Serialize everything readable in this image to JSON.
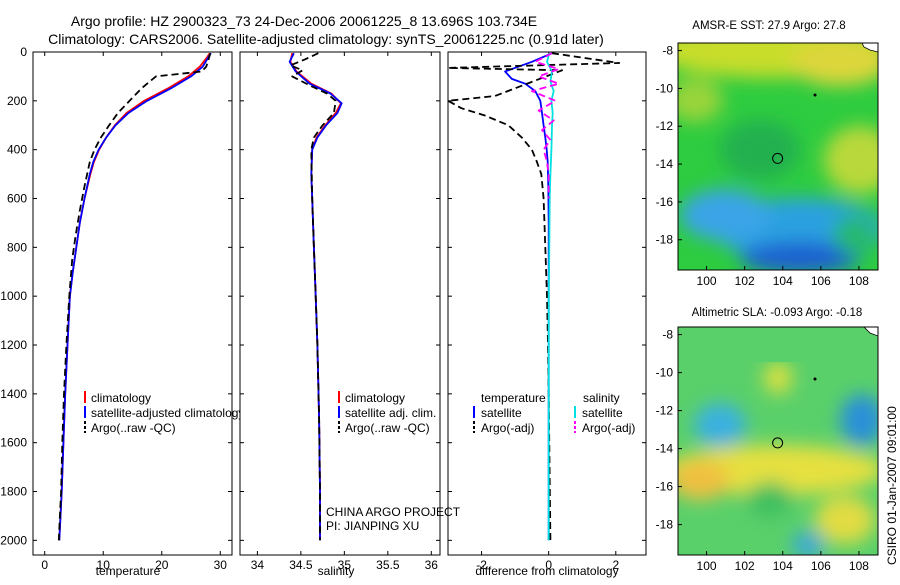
{
  "figure": {
    "title_line1": "Argo profile: HZ 2900323_73 24-Dec-2006 20061225_8 13.696S 103.734E",
    "title_line2": "Climatology: CARS2006. Satellite-adjusted climatology: synTS_20061225.nc (0.91d later)",
    "side_note": "CSIRO 01-Jan-2007 09:01:00",
    "project_line1": "CHINA ARGO PROJECT",
    "project_line2": "PI: JIANPING XU",
    "colors": {
      "climatology": "#ff0000",
      "satellite": "#0000ff",
      "argo": "#000000",
      "sat_salinity": "#00e0e0",
      "argo_salinity": "#ff00ff"
    }
  },
  "chart_data": [
    {
      "id": "temperature",
      "type": "line",
      "xlabel": "temperature",
      "ylabel": "",
      "xlim": [
        -2,
        32
      ],
      "ylim": [
        2060,
        0
      ],
      "xticks": [
        0,
        10,
        20,
        30
      ],
      "yticks": [
        0,
        200,
        400,
        600,
        800,
        1000,
        1200,
        1400,
        1600,
        1800,
        2000
      ],
      "legend": [
        "climatology",
        "satellite-adjusted climatology",
        "Argo(..raw -QC)"
      ],
      "series": [
        {
          "name": "climatology",
          "color": "#ff0000",
          "dash": "",
          "x": [
            28.2,
            27.8,
            26.5,
            24.5,
            21,
            17,
            14,
            12,
            10.5,
            9.3,
            8.4,
            7.8,
            6.8,
            6.0,
            5.4,
            4.8,
            4.3,
            3.9,
            3.5,
            3.2,
            2.9,
            2.7,
            2.5
          ],
          "y": [
            5,
            20,
            60,
            100,
            150,
            200,
            250,
            300,
            350,
            400,
            450,
            500,
            600,
            700,
            800,
            900,
            1000,
            1200,
            1400,
            1600,
            1800,
            1900,
            2000
          ]
        },
        {
          "name": "satellite-adjusted climatology",
          "color": "#0000ff",
          "dash": "",
          "x": [
            28.4,
            28.0,
            27.0,
            25.0,
            21.5,
            17.5,
            14.3,
            12.1,
            10.5,
            9.2,
            8.3,
            7.7,
            6.8,
            6.0,
            5.4,
            4.8,
            4.3,
            3.9,
            3.5,
            3.2,
            2.9,
            2.7,
            2.5
          ],
          "y": [
            5,
            20,
            60,
            100,
            150,
            200,
            250,
            300,
            350,
            400,
            450,
            500,
            600,
            700,
            800,
            900,
            1000,
            1200,
            1400,
            1600,
            1800,
            1900,
            2000
          ]
        },
        {
          "name": "Argo(..raw -QC)",
          "color": "#000000",
          "dash": "7 4",
          "x": [
            28.3,
            28.0,
            27.6,
            26.8,
            19,
            16.5,
            14.5,
            12.5,
            11.0,
            9.6,
            8.5,
            7.7,
            6.8,
            6.0,
            5.3,
            4.7,
            4.2,
            3.7,
            3.3,
            3.0,
            2.8,
            2.6,
            2.4
          ],
          "y": [
            5,
            30,
            60,
            80,
            100,
            150,
            200,
            250,
            300,
            350,
            400,
            450,
            550,
            650,
            750,
            850,
            1000,
            1200,
            1400,
            1600,
            1800,
            1900,
            2000
          ]
        }
      ]
    },
    {
      "id": "salinity",
      "type": "line",
      "xlabel": "salinity",
      "ylabel": "",
      "xlim": [
        33.8,
        36.1
      ],
      "ylim": [
        2060,
        0
      ],
      "xticks": [
        34,
        34.5,
        35,
        35.5,
        36
      ],
      "legend": [
        "climatology",
        "satellite adj. clim.",
        "Argo(..raw -QC)"
      ],
      "series": [
        {
          "name": "climatology",
          "color": "#ff0000",
          "dash": "",
          "x": [
            34.4,
            34.38,
            34.45,
            34.62,
            34.85,
            34.96,
            34.9,
            34.78,
            34.68,
            34.63,
            34.62,
            34.63,
            34.65,
            34.67,
            34.69,
            34.71,
            34.72,
            34.72
          ],
          "y": [
            5,
            40,
            80,
            130,
            170,
            210,
            250,
            300,
            350,
            400,
            500,
            600,
            800,
            1000,
            1200,
            1500,
            1800,
            2000
          ]
        },
        {
          "name": "satellite adj. clim.",
          "color": "#0000ff",
          "dash": "",
          "x": [
            34.42,
            34.37,
            34.44,
            34.6,
            34.84,
            34.97,
            34.92,
            34.79,
            34.69,
            34.63,
            34.62,
            34.63,
            34.65,
            34.67,
            34.69,
            34.71,
            34.72,
            34.72
          ],
          "y": [
            5,
            40,
            80,
            130,
            170,
            210,
            250,
            300,
            350,
            400,
            500,
            600,
            800,
            1000,
            1200,
            1500,
            1800,
            2000
          ]
        },
        {
          "name": "Argo(..raw -QC)",
          "color": "#000000",
          "dash": "7 4",
          "x": [
            34.7,
            34.55,
            34.38,
            34.52,
            34.4,
            34.62,
            34.8,
            34.9,
            34.88,
            34.75,
            34.65,
            34.62,
            34.63,
            34.65,
            34.67,
            34.69,
            34.71,
            34.72,
            34.72
          ],
          "y": [
            5,
            30,
            55,
            75,
            100,
            140,
            170,
            200,
            250,
            300,
            350,
            400,
            600,
            800,
            1000,
            1200,
            1500,
            1800,
            2000
          ]
        }
      ]
    },
    {
      "id": "difference",
      "type": "line",
      "xlabel": "difference from climatology",
      "ylabel": "",
      "xlim": [
        -3,
        2.9
      ],
      "ylim": [
        2060,
        0
      ],
      "xticks": [
        -2,
        0,
        2
      ],
      "legend_left_header": "temperature",
      "legend_right_header": "salinity",
      "legend": [
        "satellite",
        "Argo(-adj)",
        "satellite",
        "Argo(-adj)"
      ],
      "series": [
        {
          "name": "temperature satellite",
          "color": "#0000ff",
          "dash": "",
          "x": [
            0.1,
            -0.5,
            -1.3,
            -1.1,
            -0.7,
            -0.4,
            -0.25,
            -0.2,
            -0.15,
            -0.1,
            -0.06,
            -0.03,
            -0.01,
            0,
            0,
            0,
            0
          ],
          "y": [
            5,
            40,
            80,
            110,
            130,
            160,
            200,
            250,
            300,
            350,
            400,
            450,
            550,
            700,
            1000,
            1500,
            2000
          ]
        },
        {
          "name": "temperature Argo(-adj)",
          "color": "#000000",
          "dash": "7 4",
          "x": [
            0.1,
            2.1,
            -3.0,
            0.4,
            -1.6,
            -3.0,
            -2.6,
            -1.9,
            -1.2,
            -0.8,
            -0.5,
            -0.35,
            -0.22,
            -0.15,
            -0.1,
            -0.05,
            -0.02,
            0,
            0.05
          ],
          "y": [
            5,
            45,
            65,
            75,
            180,
            200,
            230,
            260,
            300,
            350,
            400,
            450,
            500,
            600,
            800,
            1000,
            1200,
            1400,
            2000
          ]
        },
        {
          "name": "salinity satellite",
          "color": "#00e0e0",
          "dash": "",
          "x": [
            0.02,
            -0.05,
            0.1,
            0.05,
            0.15,
            0.08,
            0.12,
            0.1,
            0.08,
            0.05,
            0.03,
            0.02,
            0,
            0,
            0
          ],
          "y": [
            5,
            40,
            80,
            120,
            160,
            200,
            250,
            300,
            400,
            500,
            600,
            800,
            1000,
            1500,
            2000
          ]
        },
        {
          "name": "salinity Argo(-adj)",
          "color": "#ff00ff",
          "dash": "7 4",
          "x": [
            0.1,
            -0.4,
            0.3,
            -0.3,
            0.3,
            -0.5,
            0.2,
            -0.3,
            0.15,
            -0.2,
            0.05,
            -0.15,
            -0.05,
            0,
            0
          ],
          "y": [
            5,
            40,
            70,
            100,
            130,
            160,
            200,
            240,
            280,
            320,
            360,
            400,
            450,
            500,
            600
          ]
        }
      ]
    },
    {
      "id": "sst_map",
      "type": "heatmap",
      "title": "AMSR-E SST: 27.9 Argo: 27.8",
      "xlim": [
        98.5,
        109
      ],
      "ylim": [
        -19.6,
        -7.6
      ],
      "xticks": [
        100,
        102,
        104,
        106,
        108
      ],
      "yticks": [
        -8,
        -10,
        -12,
        -14,
        -16,
        -18
      ],
      "profile_marker": {
        "lon": 103.73,
        "lat": -13.7
      }
    },
    {
      "id": "sla_map",
      "type": "heatmap",
      "title": "Altimetric SLA: -0.093 Argo: -0.18",
      "xlim": [
        98.5,
        109
      ],
      "ylim": [
        -19.6,
        -7.6
      ],
      "xticks": [
        100,
        102,
        104,
        106,
        108
      ],
      "yticks": [
        -8,
        -10,
        -12,
        -14,
        -16,
        -18
      ],
      "profile_marker": {
        "lon": 103.73,
        "lat": -13.7
      }
    }
  ]
}
